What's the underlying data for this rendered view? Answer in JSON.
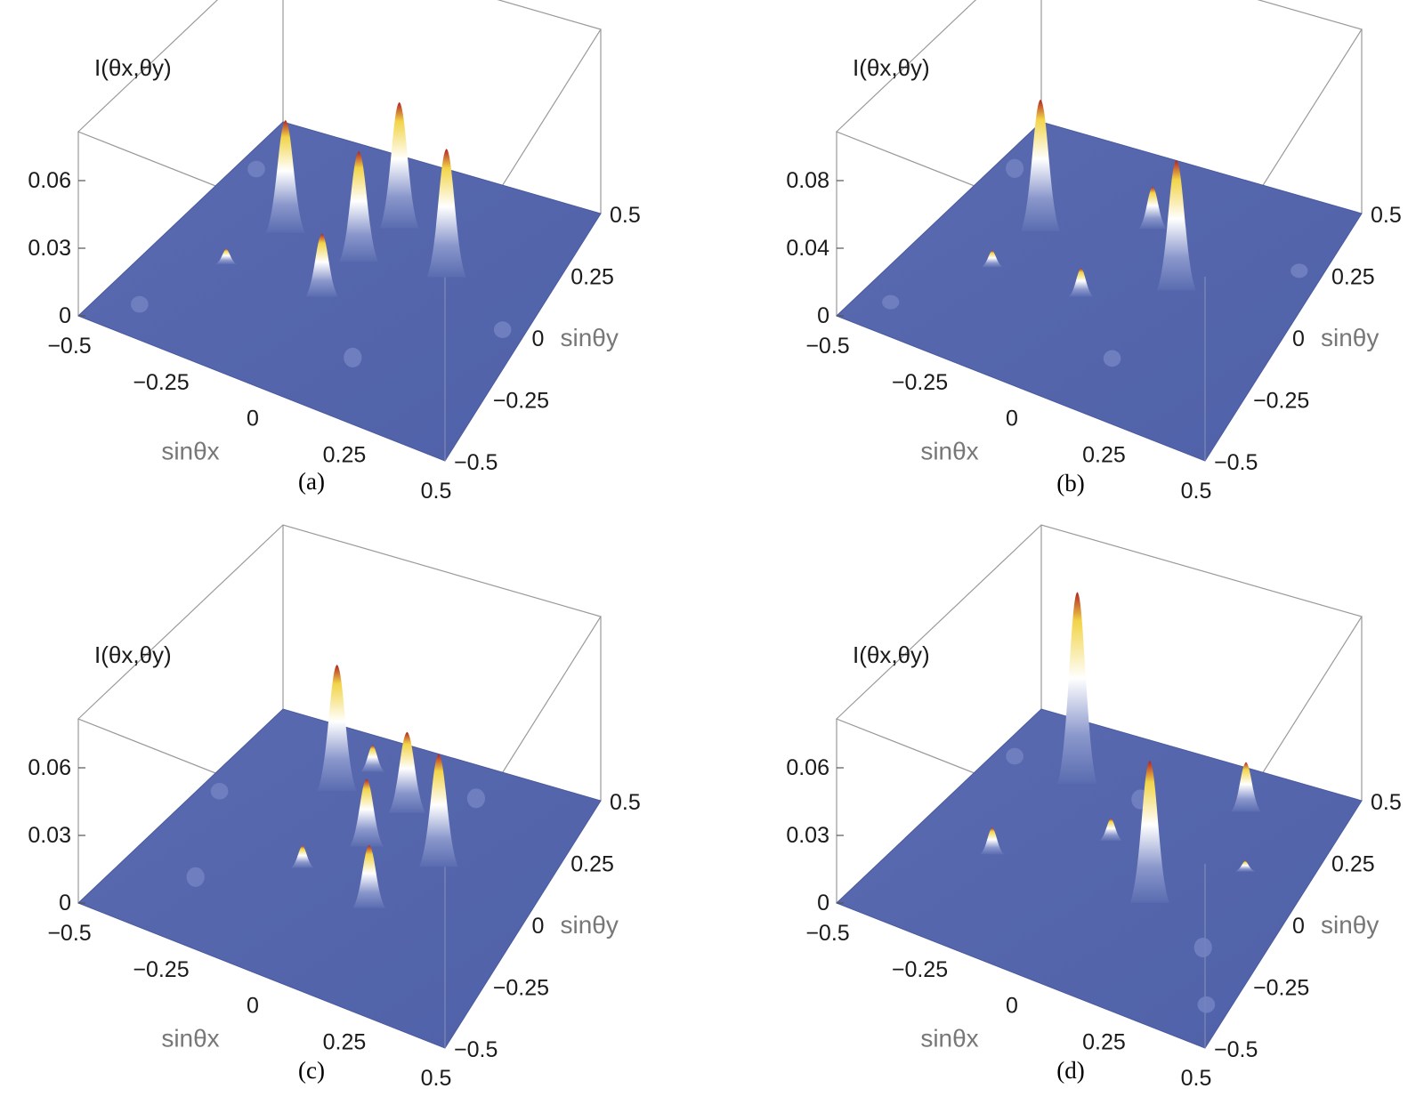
{
  "figure": {
    "panels": [
      {
        "label": "(a)",
        "zlabel": "I(θx,θy)",
        "xlabel": "sinθx",
        "ylabel": "sinθy",
        "ztick_labels": [
          "0",
          "0.03",
          "0.06"
        ],
        "xtick_labels": [
          "−0.5",
          "−0.25",
          "0",
          "0.25",
          "0.5"
        ],
        "ytick_labels": [
          "−0.5",
          "−0.25",
          "0",
          "0.25",
          "0.5"
        ]
      },
      {
        "label": "(b)",
        "zlabel": "I(θx,θy)",
        "xlabel": "sinθx",
        "ylabel": "sinθy",
        "ztick_labels": [
          "0",
          "0.04",
          "0.08"
        ],
        "xtick_labels": [
          "−0.5",
          "−0.25",
          "0",
          "0.25",
          "0.5"
        ],
        "ytick_labels": [
          "−0.5",
          "−0.25",
          "0",
          "0.25",
          "0.5"
        ]
      },
      {
        "label": "(c)",
        "zlabel": "I(θx,θy)",
        "xlabel": "sinθx",
        "ylabel": "sinθy",
        "ztick_labels": [
          "0",
          "0.03",
          "0.06"
        ],
        "xtick_labels": [
          "−0.5",
          "−0.25",
          "0",
          "0.25",
          "0.5"
        ],
        "ytick_labels": [
          "−0.5",
          "−0.25",
          "0",
          "0.25",
          "0.5"
        ]
      },
      {
        "label": "(d)",
        "zlabel": "I(θx,θy)",
        "xlabel": "sinθx",
        "ylabel": "sinθy",
        "ztick_labels": [
          "0",
          "0.03",
          "0.06"
        ],
        "xtick_labels": [
          "−0.5",
          "−0.25",
          "0",
          "0.25",
          "0.5"
        ],
        "ytick_labels": [
          "−0.5",
          "−0.25",
          "0",
          "0.25",
          "0.5"
        ]
      }
    ]
  },
  "chart_data": [
    {
      "type": "surface3d",
      "label": "(a)",
      "xlim": [
        -0.5,
        0.5
      ],
      "ylim": [
        -0.5,
        0.5
      ],
      "zlim": [
        0,
        0.06
      ],
      "colors": {
        "base": "#5566aa",
        "low": "#5a6cb0",
        "mid": "#ffffff",
        "high": "#f0d040",
        "top": "#b22222"
      },
      "peaks": [
        {
          "x": -0.27,
          "y": 0.1,
          "z": 0.05
        },
        {
          "x": -0.07,
          "y": 0.1,
          "z": 0.049
        },
        {
          "x": -0.06,
          "y": 0.28,
          "z": 0.056
        },
        {
          "x": 0.13,
          "y": 0.17,
          "z": 0.057
        },
        {
          "x": -0.07,
          "y": -0.08,
          "z": 0.028
        },
        {
          "x": -0.32,
          "y": -0.1,
          "z": 0.007
        },
        {
          "x": 0.12,
          "y": -0.27,
          "z": 0.004
        },
        {
          "x": -0.45,
          "y": 0.28,
          "z": 0.003
        },
        {
          "x": 0.35,
          "y": 0.05,
          "z": 0.003
        },
        {
          "x": -0.4,
          "y": -0.38,
          "z": 0.003
        }
      ]
    },
    {
      "type": "surface3d",
      "label": "(b)",
      "xlim": [
        -0.5,
        0.5
      ],
      "ylim": [
        -0.5,
        0.5
      ],
      "zlim": [
        0,
        0.08
      ],
      "colors": {
        "base": "#5566aa",
        "low": "#5a6cb0",
        "mid": "#ffffff",
        "high": "#f0d040",
        "top": "#b22222"
      },
      "peaks": [
        {
          "x": -0.28,
          "y": 0.1,
          "z": 0.078
        },
        {
          "x": 0.1,
          "y": 0.08,
          "z": 0.077
        },
        {
          "x": -0.07,
          "y": 0.27,
          "z": 0.025
        },
        {
          "x": -0.07,
          "y": -0.08,
          "z": 0.017
        },
        {
          "x": -0.3,
          "y": -0.1,
          "z": 0.01
        },
        {
          "x": -0.45,
          "y": 0.28,
          "z": 0.005
        },
        {
          "x": 0.12,
          "y": -0.27,
          "z": 0.004
        },
        {
          "x": 0.3,
          "y": 0.32,
          "z": 0.003
        },
        {
          "x": -0.42,
          "y": -0.38,
          "z": 0.003
        }
      ]
    },
    {
      "type": "surface3d",
      "label": "(c)",
      "xlim": [
        -0.5,
        0.5
      ],
      "ylim": [
        -0.5,
        0.5
      ],
      "zlim": [
        0,
        0.06
      ],
      "colors": {
        "base": "#5566aa",
        "low": "#5a6cb0",
        "mid": "#ffffff",
        "high": "#f0d040",
        "top": "#b22222"
      },
      "peaks": [
        {
          "x": -0.23,
          "y": 0.28,
          "z": 0.056
        },
        {
          "x": 0.12,
          "y": 0.15,
          "z": 0.05
        },
        {
          "x": -0.05,
          "y": 0.3,
          "z": 0.036
        },
        {
          "x": -0.06,
          "y": 0.12,
          "z": 0.03
        },
        {
          "x": 0.07,
          "y": -0.1,
          "z": 0.028
        },
        {
          "x": -0.2,
          "y": 0.4,
          "z": 0.012
        },
        {
          "x": -0.14,
          "y": -0.05,
          "z": 0.01
        },
        {
          "x": 0.06,
          "y": 0.44,
          "z": 0.004
        },
        {
          "x": -0.32,
          "y": -0.25,
          "z": 0.004
        },
        {
          "x": -0.45,
          "y": 0.1,
          "z": 0.003
        }
      ]
    },
    {
      "type": "surface3d",
      "label": "(d)",
      "xlim": [
        -0.5,
        0.5
      ],
      "ylim": [
        -0.5,
        0.5
      ],
      "zlim": [
        0,
        0.06
      ],
      "colors": {
        "base": "#5566aa",
        "low": "#5a6cb0",
        "mid": "#ffffff",
        "high": "#f0d040",
        "top": "#b22222"
      },
      "peaks": [
        {
          "x": -0.28,
          "y": 0.28,
          "z": 0.085
        },
        {
          "x": 0.1,
          "y": -0.05,
          "z": 0.063
        },
        {
          "x": 0.1,
          "y": 0.42,
          "z": 0.022
        },
        {
          "x": -0.1,
          "y": 0.12,
          "z": 0.01
        },
        {
          "x": -0.3,
          "y": -0.1,
          "z": 0.012
        },
        {
          "x": 0.22,
          "y": 0.2,
          "z": 0.005
        },
        {
          "x": -0.12,
          "y": 0.3,
          "z": 0.004
        },
        {
          "x": 0.3,
          "y": -0.15,
          "z": 0.004
        },
        {
          "x": -0.45,
          "y": 0.28,
          "z": 0.003
        },
        {
          "x": 0.42,
          "y": -0.35,
          "z": 0.003
        }
      ]
    }
  ]
}
